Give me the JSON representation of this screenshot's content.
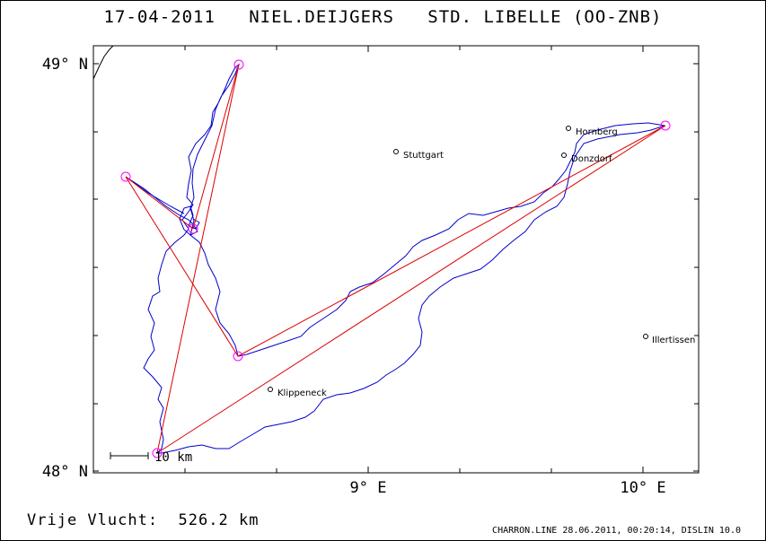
{
  "header": {
    "date": "17-04-2011",
    "pilot": "NIEL.DEIJGERS",
    "glider": "STD. LIBELLE (OO-ZNB)"
  },
  "axes": {
    "y_top_label": "49° N",
    "y_bottom_label": "48° N",
    "x_label_1": "9° E",
    "x_label_2": "10° E"
  },
  "cities": [
    {
      "name": "Stuttgart"
    },
    {
      "name": "Hornberg"
    },
    {
      "name": "Donzdorf"
    },
    {
      "name": "Illertissen"
    },
    {
      "name": "Klippeneck"
    }
  ],
  "scale_bar": {
    "label": "10 km"
  },
  "footer": {
    "free_flight_label": "Vrije Vlucht:",
    "distance": "526.2 km"
  },
  "credit": "CHARRON.LINE 28.06.2011, 00:20:14, DISLIN 10.0",
  "colors": {
    "track": "#0000cc",
    "task_lines": "#dd0000",
    "turnpoints": "#ff00ff",
    "axes": "#000000"
  }
}
